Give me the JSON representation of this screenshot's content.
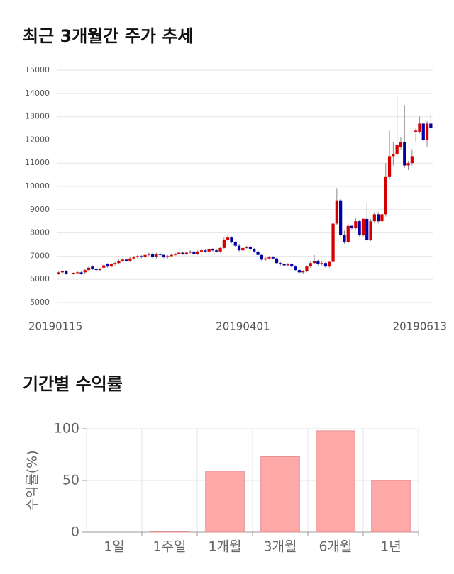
{
  "chart_data": [
    {
      "type": "candlestick",
      "title": "최근 3개월간 주가 추세",
      "categories": [
        "20190115",
        null,
        null,
        null,
        null,
        null,
        null,
        null,
        null,
        null,
        null,
        null,
        null,
        null,
        null,
        null,
        null,
        null,
        null,
        null,
        null,
        null,
        null,
        null,
        null,
        null,
        null,
        null,
        null,
        null,
        null,
        null,
        null,
        null,
        null,
        null,
        null,
        null,
        null,
        null,
        null,
        null,
        null,
        null,
        null,
        null,
        null,
        null,
        null,
        "20190401",
        null,
        null,
        null,
        null,
        null,
        null,
        null,
        null,
        null,
        null,
        null,
        null,
        null,
        null,
        null,
        null,
        null,
        null,
        null,
        null,
        null,
        null,
        null,
        null,
        null,
        null,
        null,
        null,
        null,
        null,
        null,
        null,
        null,
        null,
        null,
        null,
        null,
        null,
        null,
        null,
        null,
        null,
        null,
        null,
        null,
        null,
        null,
        null,
        null,
        "20190613"
      ],
      "open": [
        6250,
        6300,
        6350,
        6250,
        6250,
        6280,
        6300,
        6300,
        6400,
        6550,
        6450,
        6400,
        6500,
        6650,
        6550,
        6650,
        6700,
        6800,
        6850,
        6800,
        6900,
        6950,
        7000,
        6950,
        7050,
        7100,
        6950,
        7100,
        7050,
        6950,
        7000,
        7050,
        7100,
        7150,
        7100,
        7150,
        7200,
        7100,
        7200,
        7250,
        7200,
        7300,
        7250,
        7200,
        7350,
        7700,
        7800,
        7600,
        7450,
        7250,
        7350,
        7400,
        7300,
        7200,
        7050,
        6850,
        6900,
        6950,
        6900,
        6700,
        6650,
        6600,
        6650,
        6550,
        6400,
        6300,
        6350,
        6550,
        6700,
        6800,
        6650,
        6700,
        6550,
        6750,
        8400,
        9400,
        7900,
        7600,
        8300,
        8200,
        8500,
        7900,
        8600,
        7700,
        8500,
        8800,
        8500,
        8800,
        10400,
        11300,
        11400,
        11700,
        11900,
        10900,
        11000,
        12350,
        12350,
        12700,
        12000,
        12700
      ],
      "high": [
        6350,
        6400,
        6400,
        6300,
        6300,
        6350,
        6350,
        6450,
        6550,
        6600,
        6500,
        6500,
        6650,
        6700,
        6700,
        6750,
        6850,
        6900,
        6900,
        6950,
        7000,
        7050,
        7050,
        7100,
        7150,
        7150,
        7150,
        7150,
        7100,
        7050,
        7100,
        7150,
        7200,
        7200,
        7200,
        7250,
        7250,
        7250,
        7300,
        7300,
        7350,
        7350,
        7300,
        7400,
        7800,
        7950,
        7850,
        7650,
        7500,
        7400,
        7450,
        7450,
        7350,
        7250,
        7100,
        6950,
        7000,
        7000,
        6950,
        6750,
        6700,
        6700,
        6700,
        6600,
        6450,
        6400,
        6600,
        6800,
        7050,
        6850,
        6800,
        6750,
        6800,
        8450,
        9900,
        9450,
        8100,
        8400,
        8350,
        8650,
        8550,
        8650,
        9300,
        8600,
        8900,
        8900,
        8850,
        11000,
        12400,
        11900,
        13900,
        12100,
        13500,
        11100,
        11600,
        12500,
        13000,
        12750,
        12800,
        13100
      ],
      "low": [
        6200,
        6250,
        6200,
        6150,
        6200,
        6250,
        6200,
        6250,
        6350,
        6400,
        6350,
        6350,
        6450,
        6500,
        6500,
        6600,
        6650,
        6750,
        6750,
        6750,
        6850,
        6900,
        6900,
        6900,
        7000,
        6900,
        6900,
        7000,
        6900,
        6900,
        6950,
        7000,
        7050,
        7050,
        7050,
        7100,
        7050,
        7050,
        7150,
        7150,
        7150,
        7200,
        7150,
        7150,
        7300,
        7650,
        7550,
        7400,
        7200,
        7200,
        7300,
        7250,
        7150,
        7000,
        6800,
        6800,
        6850,
        6850,
        6650,
        6600,
        6550,
        6550,
        6500,
        6350,
        6250,
        6250,
        6300,
        6500,
        6650,
        6600,
        6600,
        6500,
        6500,
        6700,
        8350,
        7850,
        7500,
        7550,
        8150,
        8150,
        7850,
        7850,
        7650,
        7650,
        8450,
        8400,
        8450,
        8700,
        10300,
        10900,
        11300,
        11600,
        10800,
        10700,
        10900,
        11900,
        12300,
        11900,
        11700,
        12400
      ],
      "close": [
        6300,
        6350,
        6250,
        6220,
        6280,
        6300,
        6250,
        6400,
        6500,
        6450,
        6400,
        6450,
        6600,
        6550,
        6650,
        6700,
        6800,
        6850,
        6800,
        6900,
        6950,
        7000,
        6950,
        7050,
        7100,
        6950,
        7100,
        7050,
        6950,
        7000,
        7050,
        7100,
        7150,
        7100,
        7150,
        7200,
        7100,
        7200,
        7250,
        7200,
        7300,
        7250,
        7200,
        7350,
        7700,
        7800,
        7600,
        7450,
        7250,
        7350,
        7400,
        7300,
        7200,
        7050,
        6850,
        6900,
        6950,
        6900,
        6700,
        6650,
        6600,
        6650,
        6550,
        6400,
        6300,
        6350,
        6550,
        6700,
        6800,
        6650,
        6700,
        6550,
        6750,
        8400,
        9400,
        7900,
        7600,
        8300,
        8200,
        8500,
        7900,
        8600,
        7700,
        8500,
        8800,
        8500,
        8800,
        10400,
        11300,
        11400,
        11800,
        11900,
        10900,
        11000,
        11300,
        12400,
        12700,
        12000,
        12700,
        12500
      ],
      "up_color": "#d40000",
      "down_color": "#0000a8",
      "ylim": [
        5000,
        15000
      ],
      "yticks": [
        5000,
        6000,
        7000,
        8000,
        9000,
        10000,
        11000,
        12000,
        13000,
        14000,
        15000
      ],
      "grid": true
    },
    {
      "type": "bar",
      "title": "기간별 수익률",
      "ylabel": "수익률(%)",
      "categories": [
        "1일",
        "1주일",
        "1개월",
        "3개월",
        "6개월",
        "1년"
      ],
      "values": [
        0,
        0.5,
        59,
        73,
        98,
        50
      ],
      "color": "#ffa8a8",
      "ylim": [
        0,
        100
      ],
      "yticks": [
        0,
        50,
        100
      ],
      "grid": true
    }
  ]
}
